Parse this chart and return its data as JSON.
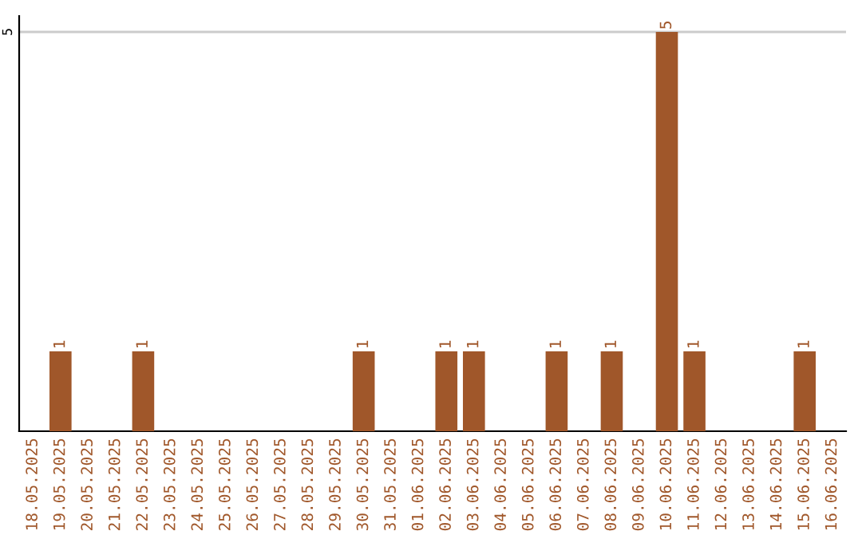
{
  "chart_data": {
    "type": "bar",
    "categories": [
      "18.05.2025",
      "19.05.2025",
      "20.05.2025",
      "21.05.2025",
      "22.05.2025",
      "23.05.2025",
      "24.05.2025",
      "25.05.2025",
      "26.05.2025",
      "27.05.2025",
      "28.05.2025",
      "29.05.2025",
      "30.05.2025",
      "31.05.2025",
      "01.06.2025",
      "02.06.2025",
      "03.06.2025",
      "04.06.2025",
      "05.06.2025",
      "06.06.2025",
      "07.06.2025",
      "08.06.2025",
      "09.06.2025",
      "10.06.2025",
      "11.06.2025",
      "12.06.2025",
      "13.06.2025",
      "14.06.2025",
      "15.06.2025",
      "16.06.2025"
    ],
    "values": [
      0,
      1,
      0,
      0,
      1,
      0,
      0,
      0,
      0,
      0,
      0,
      0,
      1,
      0,
      0,
      1,
      1,
      0,
      0,
      1,
      0,
      1,
      0,
      5,
      1,
      0,
      0,
      0,
      1,
      0
    ],
    "color": "#a0572a",
    "value_labels": [
      null,
      "1",
      null,
      null,
      "1",
      null,
      null,
      null,
      null,
      null,
      null,
      null,
      "1",
      null,
      null,
      "1",
      "1",
      null,
      null,
      "1",
      null,
      "1",
      null,
      "5",
      "1",
      null,
      null,
      null,
      "1",
      null
    ],
    "ylim": [
      0,
      5.2
    ],
    "yticks": [
      5
    ],
    "grid": "y"
  }
}
